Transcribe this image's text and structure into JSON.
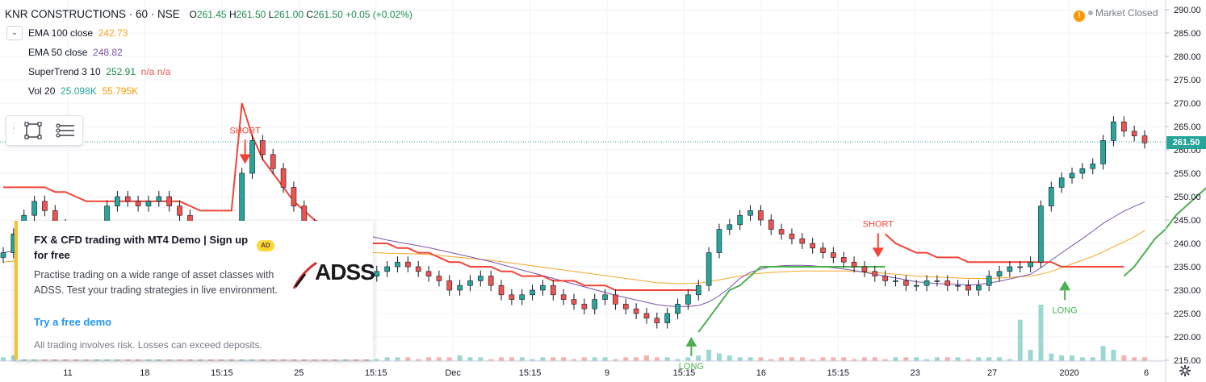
{
  "header": {
    "symbol": "KNR CONSTRUCTIONS · 60 · NSE",
    "o_label": "O",
    "o_value": "261.45",
    "h_label": "H",
    "h_value": "261.50",
    "l_label": "L",
    "l_value": "261.00",
    "c_label": "C",
    "c_value": "261.50",
    "change": "+0.05 (+0.02%)"
  },
  "studies": [
    {
      "label": "EMA 100 close",
      "value": "242.73",
      "color": "#f5a623"
    },
    {
      "label": "EMA 50 close",
      "value": "248.82",
      "color": "#7b52ab"
    },
    {
      "label": "SuperTrend 3 10",
      "value": "252.91",
      "extra": "n/a  n/a",
      "color": "#1e8a4b",
      "extra_color": "#ef5350"
    },
    {
      "label": "Vol 20",
      "value": "25.098K",
      "extra": "55.795K",
      "color": "#26a69a",
      "extra_color": "#ff9800"
    }
  ],
  "market_status": {
    "icon": "warning-icon",
    "text": "Market Closed"
  },
  "last_price": "261.50",
  "ad": {
    "title": "FX & CFD trading with MT4 Demo | Sign up for free",
    "badge": "AD",
    "body": "Practise trading on a wide range of asset classes with ADSS. Test your trading strategies in live environment.",
    "cta": "Try a free demo",
    "disclaimer": "All trading involves risk. Losses can exceed deposits.",
    "logo": "ADSS"
  },
  "toolbox": {
    "icons": [
      "rectangle-tool-icon",
      "settings-lines-icon"
    ]
  },
  "chart_data": {
    "type": "candlestick",
    "title": "KNR CONSTRUCTIONS · 60 · NSE",
    "ylim": [
      215,
      290
    ],
    "y_ticks": [
      215,
      220,
      225,
      230,
      235,
      240,
      245,
      250,
      255,
      260,
      265,
      270,
      275,
      280,
      285,
      290
    ],
    "x_ticks": [
      "11",
      "18",
      "15:15",
      "25",
      "15:15",
      "Dec",
      "15:15",
      "9",
      "15:15",
      "16",
      "15:15",
      "23",
      "27",
      "2020",
      "6"
    ],
    "close_series": [
      238,
      242,
      246,
      249,
      247,
      244,
      241,
      239,
      237,
      243,
      248,
      250,
      249,
      248,
      249,
      250,
      248,
      246,
      243,
      240,
      239,
      238,
      237,
      255,
      262,
      259,
      256,
      252,
      248,
      244,
      240,
      238,
      236,
      236,
      234,
      233,
      234,
      235,
      236,
      235,
      234,
      233,
      232,
      230,
      231,
      232,
      233,
      231,
      229,
      228,
      229,
      230,
      231,
      229,
      228,
      227,
      226,
      228,
      229,
      227,
      226,
      225,
      224,
      223,
      225,
      227,
      229,
      231,
      238,
      243,
      244,
      246,
      247,
      245,
      243,
      242,
      241,
      240,
      239,
      238,
      237,
      236,
      235,
      234,
      233,
      232,
      232,
      231,
      231,
      232,
      232,
      231,
      231,
      230,
      231,
      233,
      234,
      235,
      235,
      236,
      248,
      252,
      254,
      255,
      256,
      257,
      262,
      266,
      264,
      263,
      261.5
    ],
    "volume_series": [
      2,
      3,
      2,
      1,
      2,
      3,
      2,
      2,
      1,
      2,
      3,
      2,
      2,
      1,
      2,
      3,
      2,
      2,
      1,
      2,
      3,
      2,
      2,
      5,
      8,
      4,
      3,
      2,
      2,
      3,
      2,
      2,
      1,
      2,
      2,
      2,
      1,
      2,
      2,
      2,
      1,
      2,
      2,
      2,
      3,
      2,
      2,
      1,
      2,
      2,
      2,
      1,
      2,
      2,
      2,
      1,
      2,
      2,
      2,
      1,
      2,
      2,
      3,
      2,
      2,
      1,
      2,
      3,
      6,
      4,
      3,
      2,
      2,
      2,
      1,
      2,
      2,
      2,
      1,
      2,
      2,
      2,
      1,
      2,
      2,
      1,
      2,
      2,
      2,
      1,
      2,
      2,
      2,
      1,
      2,
      2,
      2,
      1,
      22,
      6,
      30,
      4,
      3,
      3,
      2,
      2,
      8,
      6,
      3,
      2,
      2
    ],
    "ema100": [
      236,
      236.2,
      236.5,
      236.7,
      236.8,
      236.9,
      236.9,
      236.9,
      236.8,
      236.9,
      237,
      237.1,
      237.2,
      237.3,
      237.4,
      237.5,
      237.6,
      237.6,
      237.6,
      237.6,
      237.5,
      237.5,
      237.4,
      237.6,
      237.9,
      238.1,
      238.3,
      238.4,
      238.5,
      238.5,
      238.5,
      238.5,
      238.4,
      238.4,
      238.3,
      238.1,
      238,
      237.9,
      237.8,
      237.8,
      237.7,
      237.6,
      237.4,
      237.2,
      237,
      236.8,
      236.6,
      236.4,
      236.1,
      235.8,
      235.5,
      235.2,
      234.9,
      234.6,
      234.3,
      234,
      233.7,
      233.4,
      233.1,
      232.8,
      232.5,
      232.2,
      231.9,
      231.6,
      231.5,
      231.4,
      231.4,
      231.5,
      231.8,
      232.2,
      232.6,
      233,
      233.4,
      233.6,
      233.8,
      233.9,
      234,
      234.1,
      234.1,
      234.1,
      234.1,
      234.1,
      234,
      233.9,
      233.8,
      233.6,
      233.4,
      233.2,
      233,
      232.9,
      232.8,
      232.7,
      232.6,
      232.5,
      232.5,
      232.5,
      232.6,
      232.7,
      232.9,
      233,
      233.4,
      234,
      234.8,
      235.6,
      236.4,
      237.2,
      238.2,
      239.3,
      240.3,
      241.4,
      242.73
    ],
    "ema50": [
      238,
      238.4,
      238.8,
      239.2,
      239.5,
      239.7,
      239.8,
      239.8,
      239.7,
      239.8,
      240,
      240.3,
      240.5,
      240.7,
      240.9,
      241.1,
      241.3,
      241.3,
      241.3,
      241.2,
      241,
      240.8,
      240.6,
      241.1,
      241.9,
      242.6,
      243.1,
      243.5,
      243.7,
      243.7,
      243.6,
      243.4,
      243,
      242.6,
      242.2,
      241.7,
      241.2,
      240.7,
      240.3,
      239.9,
      239.5,
      239.1,
      238.6,
      238.1,
      237.6,
      237.1,
      236.6,
      236.1,
      235.5,
      234.9,
      234.3,
      233.7,
      233.1,
      232.5,
      231.9,
      231.3,
      230.7,
      230.1,
      229.5,
      228.9,
      228.4,
      227.9,
      227.4,
      226.9,
      226.6,
      226.5,
      226.5,
      226.7,
      227.5,
      228.8,
      230.5,
      232.5,
      233.8,
      234.5,
      235,
      235.2,
      235.3,
      235.3,
      235.2,
      235,
      234.8,
      234.5,
      234.2,
      233.8,
      233.4,
      233,
      232.6,
      232.2,
      231.8,
      231.6,
      231.4,
      231.3,
      231.2,
      231.1,
      231.2,
      231.5,
      231.9,
      232.4,
      232.9,
      233.4,
      234.8,
      236.4,
      238,
      239.5,
      241,
      242.6,
      244.3,
      245.6,
      246.9,
      247.9,
      248.82
    ],
    "supertrend": [
      {
        "dir": "short",
        "values": [
          252,
          252,
          252,
          252,
          252,
          251,
          251,
          250,
          249,
          249,
          249,
          249,
          249,
          249,
          249,
          249,
          249,
          249,
          248,
          247,
          247,
          247,
          247,
          270,
          263,
          258,
          255,
          252,
          249,
          247,
          245,
          244,
          243,
          242,
          241,
          240,
          240,
          240,
          239,
          239,
          238,
          238,
          237,
          236,
          236,
          235,
          235,
          235,
          234,
          234,
          233,
          233,
          233,
          232,
          232,
          232,
          231,
          231,
          231,
          230,
          230,
          230,
          230,
          230,
          230,
          230,
          230,
          230
        ]
      },
      {
        "dir": "long",
        "values": [
          221,
          224,
          227,
          230,
          231,
          233,
          235,
          235,
          235,
          235,
          235,
          235,
          235,
          235,
          235,
          235,
          235,
          235,
          235
        ]
      },
      {
        "dir": "short",
        "values": [
          242,
          240,
          239,
          238,
          238,
          237,
          237,
          237,
          236,
          236,
          236,
          236,
          236,
          236,
          236,
          236,
          236,
          235,
          235,
          235,
          235,
          235,
          235,
          235
        ]
      },
      {
        "dir": "long",
        "values": [
          233,
          235,
          238,
          241,
          243,
          246,
          248,
          250,
          252,
          253,
          253,
          253,
          253,
          253
        ]
      }
    ],
    "signals": [
      {
        "type": "SHORT",
        "price": 257
      },
      {
        "type": "LONG",
        "price": 220
      },
      {
        "type": "SHORT",
        "price": 237
      },
      {
        "type": "LONG",
        "price": 232
      }
    ]
  }
}
